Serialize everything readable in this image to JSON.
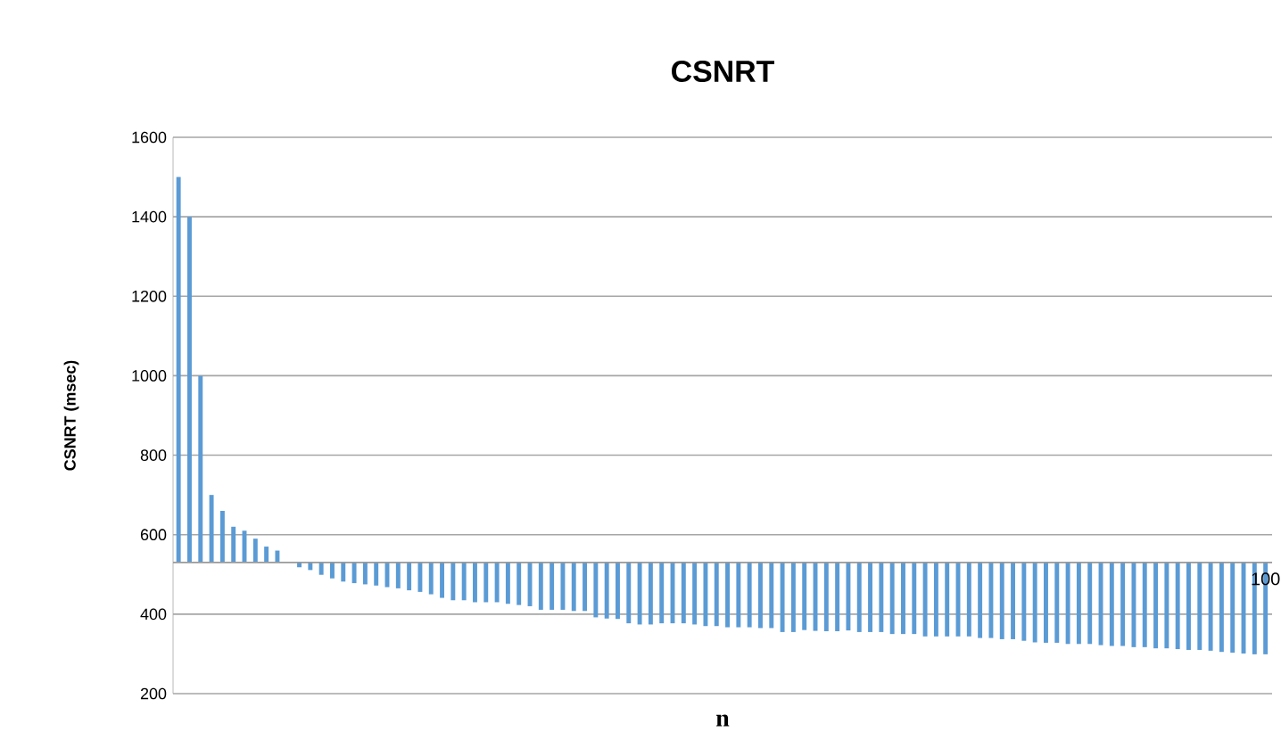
{
  "chart_data": {
    "type": "bar",
    "title": "CSNRT",
    "xlabel": "n",
    "ylabel": "CSNRT (msec)",
    "categories": [
      null,
      null,
      null,
      null,
      null,
      null,
      null,
      null,
      null,
      null,
      null,
      null,
      null,
      null,
      null,
      null,
      null,
      null,
      null,
      null,
      null,
      null,
      null,
      null,
      null,
      null,
      null,
      null,
      null,
      null,
      null,
      null,
      null,
      null,
      null,
      null,
      null,
      null,
      null,
      null,
      null,
      null,
      null,
      null,
      null,
      null,
      null,
      null,
      null,
      null,
      null,
      null,
      null,
      null,
      null,
      null,
      null,
      null,
      null,
      null,
      null,
      null,
      null,
      null,
      null,
      null,
      null,
      null,
      null,
      null,
      null,
      null,
      null,
      null,
      null,
      null,
      null,
      null,
      null,
      null,
      null,
      null,
      null,
      null,
      null,
      null,
      null,
      null,
      null,
      null,
      null,
      null,
      null,
      null,
      null,
      null,
      null,
      null,
      null,
      "100"
    ],
    "base": [
      530,
      530,
      530,
      530,
      530,
      530,
      530,
      530,
      530,
      530,
      null,
      530,
      530,
      530,
      530,
      530,
      530,
      530,
      530,
      530,
      530,
      530,
      530,
      530,
      530,
      530,
      530,
      530,
      530,
      530,
      530,
      530,
      530,
      530,
      530,
      530,
      530,
      530,
      530,
      530,
      530,
      530,
      530,
      530,
      530,
      530,
      530,
      530,
      530,
      530,
      530,
      530,
      530,
      530,
      530,
      530,
      530,
      530,
      530,
      530,
      530,
      530,
      530,
      530,
      530,
      530,
      530,
      530,
      530,
      530,
      530,
      530,
      530,
      530,
      530,
      530,
      530,
      530,
      530,
      530,
      530,
      530,
      530,
      530,
      530,
      530,
      530,
      530,
      530,
      530,
      530,
      530,
      530,
      530,
      530,
      530,
      530,
      530,
      530,
      530
    ],
    "values": [
      970,
      870,
      470,
      170,
      130,
      90,
      80,
      60,
      40,
      30,
      null,
      -12,
      -19,
      -31,
      -40,
      -48,
      -52,
      -55,
      -58,
      -62,
      -65,
      -70,
      -74,
      -80,
      -89,
      -95,
      -95,
      -100,
      -100,
      -100,
      -104,
      -107,
      -110,
      -119,
      -119,
      -119,
      -122,
      -122,
      -138,
      -141,
      -142,
      -153,
      -156,
      -156,
      -153,
      -153,
      -153,
      -156,
      -160,
      -160,
      -163,
      -163,
      -163,
      -165,
      -165,
      -175,
      -175,
      -170,
      -172,
      -173,
      -173,
      -171,
      -175,
      -175,
      -175,
      -180,
      -180,
      -180,
      -186,
      -186,
      -186,
      -186,
      -186,
      -190,
      -190,
      -193,
      -193,
      -197,
      -201,
      -202,
      -202,
      -205,
      -205,
      -205,
      -208,
      -210,
      -210,
      -213,
      -213,
      -216,
      -216,
      -218,
      -220,
      -220,
      -222,
      -225,
      -227,
      -229,
      -231,
      -231
    ],
    "color": "#5b9bd5",
    "ylim": [
      200,
      1600
    ],
    "yticks": [
      200,
      400,
      600,
      800,
      1000,
      1200,
      1400,
      1600
    ],
    "grid": "y",
    "ref_lines": [
      {
        "axis": "y",
        "value": 530,
        "color": "#999999"
      }
    ]
  }
}
